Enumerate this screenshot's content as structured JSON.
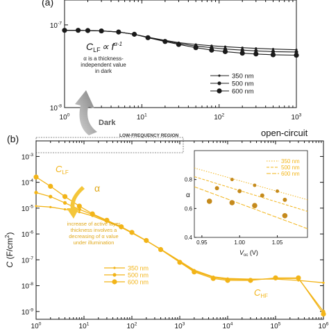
{
  "colors": {
    "dark_series": "#1a1a1a",
    "illum_series": "#f2b418",
    "illum_marker": "#c58a1c",
    "arrow_gray": "#9a9a9a",
    "region_box": "#666666"
  },
  "panel_a": {
    "label": "(a)",
    "formula_main": "C",
    "formula_sub": "LF",
    "formula_rest": "∝ f",
    "formula_sup": "α-1",
    "note_lines": [
      "α is a thickness-",
      "independent value",
      "in dark"
    ],
    "dark_label": "Dark"
  },
  "panel_b": {
    "label": "(b)",
    "condition": "open-circuit",
    "region_label": "LOW-FREQUENCY REGION",
    "clf_main": "C",
    "clf_sub": "LF",
    "chf_main": "C",
    "chf_sub": "HF",
    "alpha_symbol": "α",
    "note_lines": [
      "increase of active layer",
      "thickness involves a",
      "decreasing of α value",
      "under illumination"
    ]
  },
  "chart_data": [
    {
      "type": "line",
      "panel": "a",
      "x_scale": "log",
      "y_scale": "log",
      "xlim": [
        1,
        1000
      ],
      "ylim": [
        1e-08,
        2e-07
      ],
      "x_ticks": [
        {
          "v": 1,
          "m": "10",
          "e": "0"
        },
        {
          "v": 10,
          "m": "10",
          "e": "1"
        },
        {
          "v": 100,
          "m": "10",
          "e": "2"
        },
        {
          "v": 1000,
          "m": "10",
          "e": "3"
        }
      ],
      "y_ticks": [
        {
          "v": 1e-08,
          "m": "10",
          "e": "-8"
        },
        {
          "v": 1e-07,
          "m": "10",
          "e": "-7"
        }
      ],
      "legend_position": "lower-right",
      "series": [
        {
          "name": "350 nm",
          "marker_size": 1.6,
          "x": [
            1,
            1.5,
            2,
            3,
            5,
            8,
            12,
            20,
            30,
            50,
            80,
            120,
            200,
            300,
            500,
            1000
          ],
          "y": [
            8.6e-08,
            8.6e-08,
            8.55e-08,
            8.45e-08,
            8.2e-08,
            7.7e-08,
            7.1e-08,
            6.5e-08,
            6.1e-08,
            5.8e-08,
            5.6e-08,
            5.45e-08,
            5.3e-08,
            5.2e-08,
            5.1e-08,
            5e-08
          ]
        },
        {
          "name": "500 nm",
          "marker_size": 2.6,
          "x": [
            1,
            1.5,
            2,
            3,
            5,
            8,
            12,
            20,
            30,
            50,
            80,
            120,
            200,
            300,
            500,
            1000
          ],
          "y": [
            8.6e-08,
            8.6e-08,
            8.55e-08,
            8.45e-08,
            8.2e-08,
            7.7e-08,
            7.05e-08,
            6.4e-08,
            5.95e-08,
            5.55e-08,
            5.3e-08,
            5.1e-08,
            4.95e-08,
            4.85e-08,
            4.75e-08,
            4.7e-08
          ]
        },
        {
          "name": "600 nm",
          "marker_size": 3.6,
          "x": [
            1,
            1.5,
            2,
            3,
            5,
            8,
            12,
            20,
            30,
            50,
            80,
            120,
            200,
            300,
            500,
            1000
          ],
          "y": [
            8.6e-08,
            8.6e-08,
            8.55e-08,
            8.45e-08,
            8.2e-08,
            7.7e-08,
            7e-08,
            6.3e-08,
            5.8e-08,
            5.3e-08,
            4.95e-08,
            4.75e-08,
            4.55e-08,
            4.45e-08,
            4.35e-08,
            4.3e-08
          ]
        }
      ]
    },
    {
      "type": "line",
      "panel": "b",
      "x_scale": "log",
      "y_scale": "log",
      "xlim": [
        1,
        1000000
      ],
      "ylim": [
        5e-10,
        0.004
      ],
      "ylabel_main": "C",
      "ylabel_rest": " (F/cm",
      "ylabel_sup": "2",
      "ylabel_end": ")",
      "x_ticks": [
        {
          "v": 1,
          "m": "10",
          "e": "0"
        },
        {
          "v": 10,
          "m": "10",
          "e": "1"
        },
        {
          "v": 100,
          "m": "10",
          "e": "2"
        },
        {
          "v": 1000,
          "m": "10",
          "e": "3"
        },
        {
          "v": 10000,
          "m": "10",
          "e": "4"
        },
        {
          "v": 100000,
          "m": "10",
          "e": "5"
        },
        {
          "v": 1000000,
          "m": "10",
          "e": "6"
        }
      ],
      "y_ticks": [
        {
          "v": 1e-09,
          "m": "10",
          "e": "-9"
        },
        {
          "v": 1e-08,
          "m": "10",
          "e": "-8"
        },
        {
          "v": 1e-07,
          "m": "10",
          "e": "-7"
        },
        {
          "v": 1e-06,
          "m": "10",
          "e": "-6"
        },
        {
          "v": 1e-05,
          "m": "10",
          "e": "-5"
        },
        {
          "v": 0.0001,
          "m": "10",
          "e": "-4"
        },
        {
          "v": 0.001,
          "m": "10",
          "e": "-3"
        }
      ],
      "legend_position": "lower-left",
      "series": [
        {
          "name": "350 nm",
          "marker_size": 1.6,
          "x": [
            1,
            2,
            4,
            8,
            15,
            30,
            60,
            100,
            200,
            400,
            1000,
            2000,
            5000,
            10000,
            30000,
            100000,
            300000,
            1000000
          ],
          "y": [
            1.2e-05,
            1.1e-05,
            9e-06,
            7e-06,
            5e-06,
            3e-06,
            1.8e-06,
            1.1e-06,
            5.5e-07,
            2.6e-07,
            9e-08,
            4e-08,
            2.2e-08,
            1.9e-08,
            1.8e-08,
            1.8e-08,
            1.6e-08,
            1.3e-08
          ]
        },
        {
          "name": "500 nm",
          "marker_size": 2.6,
          "x": [
            1,
            2,
            4,
            8,
            15,
            30,
            60,
            100,
            200,
            400,
            1000,
            2000,
            5000,
            10000,
            30000,
            100000,
            300000,
            1000000
          ],
          "y": [
            4e-05,
            2.8e-05,
            1.6e-05,
            9e-06,
            5.6e-06,
            3.2e-06,
            1.8e-06,
            1.1e-06,
            5.5e-07,
            2.5e-07,
            8.5e-08,
            3.7e-08,
            2.1e-08,
            1.75e-08,
            1.7e-08,
            1.9e-08,
            1.9e-08,
            1e-09
          ]
        },
        {
          "name": "600 nm",
          "marker_size": 3.6,
          "x": [
            1,
            2,
            4,
            8,
            15,
            30,
            60,
            100,
            200,
            400,
            1000,
            2000,
            5000,
            10000,
            30000,
            100000,
            300000,
            1000000
          ],
          "y": [
            0.00016,
            7e-05,
            2.8e-05,
            1.2e-05,
            6e-06,
            3.4e-06,
            1.9e-06,
            1.15e-06,
            5.6e-07,
            2.5e-07,
            8e-08,
            3.4e-08,
            1.9e-08,
            1.6e-08,
            1.6e-08,
            2e-08,
            2e-08,
            8e-10
          ]
        }
      ]
    },
    {
      "type": "scatter",
      "panel": "inset",
      "xlabel_main": "V",
      "xlabel_sub": "oc",
      "xlabel_rest": " (V)",
      "ylabel": "α",
      "xlim": [
        0.94,
        1.09
      ],
      "ylim": [
        0.4,
        1.0
      ],
      "x_ticks": [
        "0.95",
        "1.00",
        "1.05"
      ],
      "x_tick_values": [
        0.95,
        1.0,
        1.05
      ],
      "y_ticks": [
        "0.4",
        "0.6",
        "0.8"
      ],
      "y_tick_values": [
        0.4,
        0.6,
        0.8
      ],
      "legend_position": "top-right",
      "series": [
        {
          "name": "350 nm",
          "dash": "1.5,2",
          "marker_size": 2.5,
          "points": [
            [
              0.99,
              0.8
            ],
            [
              1.02,
              0.76
            ],
            [
              1.05,
              0.72
            ]
          ],
          "fit": [
            [
              0.94,
              0.88
            ],
            [
              1.09,
              0.66
            ]
          ]
        },
        {
          "name": "500 nm",
          "dash": "4,2",
          "marker_size": 3,
          "points": [
            [
              0.97,
              0.74
            ],
            [
              1.0,
              0.72
            ],
            [
              1.03,
              0.69
            ],
            [
              1.06,
              0.66
            ]
          ],
          "fit": [
            [
              0.94,
              0.82
            ],
            [
              1.09,
              0.58
            ]
          ]
        },
        {
          "name": "600 nm",
          "dash": "6,2",
          "marker_size": 3.8,
          "points": [
            [
              0.96,
              0.65
            ],
            [
              0.99,
              0.64
            ],
            [
              1.02,
              0.62
            ],
            [
              1.06,
              0.55
            ]
          ],
          "fit": [
            [
              0.94,
              0.75
            ],
            [
              1.09,
              0.46
            ]
          ]
        }
      ]
    }
  ]
}
